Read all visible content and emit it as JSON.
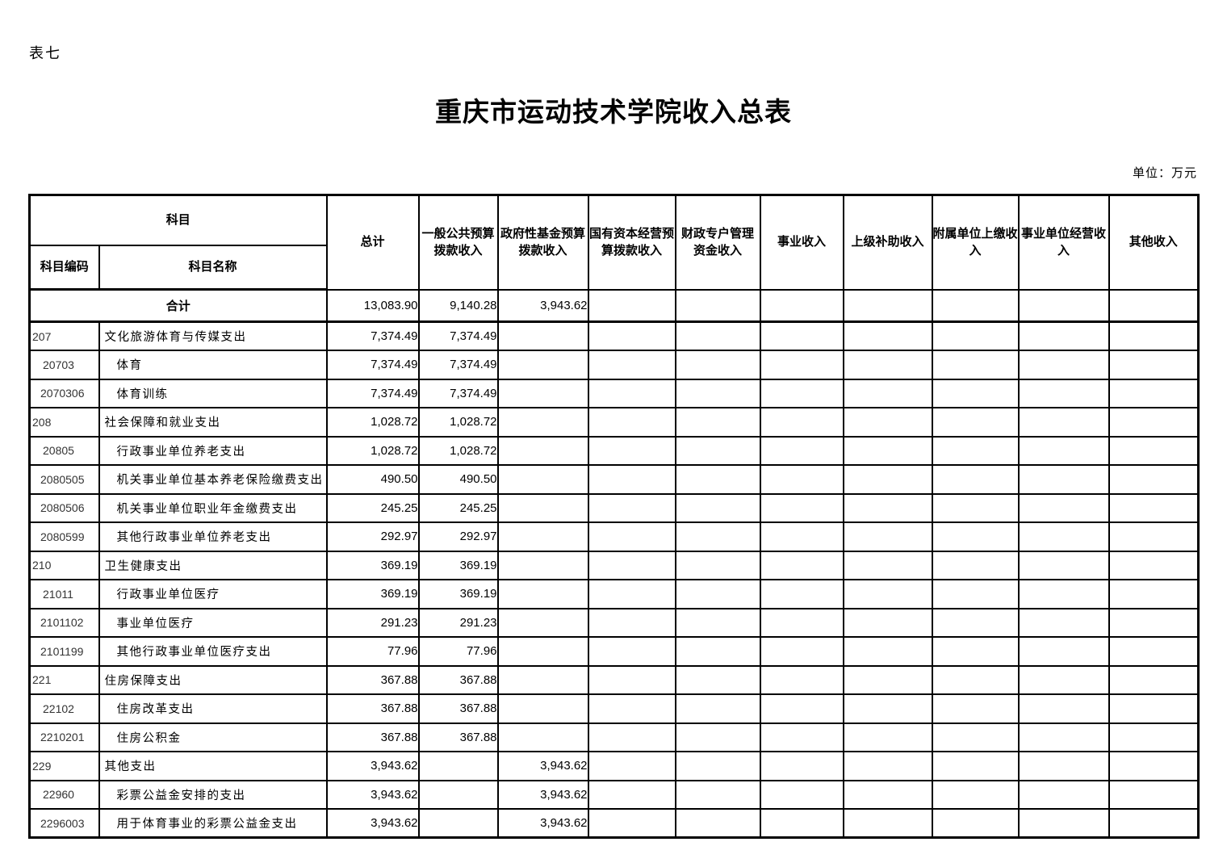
{
  "page": {
    "table_label": "表七",
    "title": "重庆市运动技术学院收入总表",
    "unit_label": "单位：万元"
  },
  "table": {
    "header": {
      "subject": "科目",
      "subject_code": "科目编码",
      "subject_name": "科目名称",
      "columns": [
        "总计",
        "一般公共预算拨款收入",
        "政府性基金预算拨款收入",
        "国有资本经营预算拨款收入",
        "财政专户管理资金收入",
        "事业收入",
        "上级补助收入",
        "附属单位上缴收入",
        "事业单位经营收入",
        "其他收入"
      ]
    },
    "total_row": {
      "label": "合计",
      "values": [
        "13,083.90",
        "9,140.28",
        "3,943.62",
        "",
        "",
        "",
        "",
        "",
        "",
        ""
      ]
    },
    "rows": [
      {
        "code": "207",
        "name": "文化旅游体育与传媒支出",
        "level": 1,
        "values": [
          "7,374.49",
          "7,374.49",
          "",
          "",
          "",
          "",
          "",
          "",
          "",
          ""
        ]
      },
      {
        "code": "20703",
        "name": "体育",
        "level": 2,
        "values": [
          "7,374.49",
          "7,374.49",
          "",
          "",
          "",
          "",
          "",
          "",
          "",
          ""
        ]
      },
      {
        "code": "2070306",
        "name": "体育训练",
        "level": 3,
        "values": [
          "7,374.49",
          "7,374.49",
          "",
          "",
          "",
          "",
          "",
          "",
          "",
          ""
        ]
      },
      {
        "code": "208",
        "name": "社会保障和就业支出",
        "level": 1,
        "values": [
          "1,028.72",
          "1,028.72",
          "",
          "",
          "",
          "",
          "",
          "",
          "",
          ""
        ]
      },
      {
        "code": "20805",
        "name": "行政事业单位养老支出",
        "level": 2,
        "values": [
          "1,028.72",
          "1,028.72",
          "",
          "",
          "",
          "",
          "",
          "",
          "",
          ""
        ]
      },
      {
        "code": "2080505",
        "name": "机关事业单位基本养老保险缴费支出",
        "level": 3,
        "values": [
          "490.50",
          "490.50",
          "",
          "",
          "",
          "",
          "",
          "",
          "",
          ""
        ]
      },
      {
        "code": "2080506",
        "name": "机关事业单位职业年金缴费支出",
        "level": 3,
        "values": [
          "245.25",
          "245.25",
          "",
          "",
          "",
          "",
          "",
          "",
          "",
          ""
        ]
      },
      {
        "code": "2080599",
        "name": "其他行政事业单位养老支出",
        "level": 3,
        "values": [
          "292.97",
          "292.97",
          "",
          "",
          "",
          "",
          "",
          "",
          "",
          ""
        ]
      },
      {
        "code": "210",
        "name": "卫生健康支出",
        "level": 1,
        "values": [
          "369.19",
          "369.19",
          "",
          "",
          "",
          "",
          "",
          "",
          "",
          ""
        ]
      },
      {
        "code": "21011",
        "name": "行政事业单位医疗",
        "level": 2,
        "values": [
          "369.19",
          "369.19",
          "",
          "",
          "",
          "",
          "",
          "",
          "",
          ""
        ]
      },
      {
        "code": "2101102",
        "name": "事业单位医疗",
        "level": 3,
        "values": [
          "291.23",
          "291.23",
          "",
          "",
          "",
          "",
          "",
          "",
          "",
          ""
        ]
      },
      {
        "code": "2101199",
        "name": "其他行政事业单位医疗支出",
        "level": 3,
        "values": [
          "77.96",
          "77.96",
          "",
          "",
          "",
          "",
          "",
          "",
          "",
          ""
        ]
      },
      {
        "code": "221",
        "name": "住房保障支出",
        "level": 1,
        "values": [
          "367.88",
          "367.88",
          "",
          "",
          "",
          "",
          "",
          "",
          "",
          ""
        ]
      },
      {
        "code": "22102",
        "name": "住房改革支出",
        "level": 2,
        "values": [
          "367.88",
          "367.88",
          "",
          "",
          "",
          "",
          "",
          "",
          "",
          ""
        ]
      },
      {
        "code": "2210201",
        "name": "住房公积金",
        "level": 3,
        "values": [
          "367.88",
          "367.88",
          "",
          "",
          "",
          "",
          "",
          "",
          "",
          ""
        ]
      },
      {
        "code": "229",
        "name": "其他支出",
        "level": 1,
        "values": [
          "3,943.62",
          "",
          "3,943.62",
          "",
          "",
          "",
          "",
          "",
          "",
          ""
        ]
      },
      {
        "code": "22960",
        "name": "彩票公益金安排的支出",
        "level": 2,
        "values": [
          "3,943.62",
          "",
          "3,943.62",
          "",
          "",
          "",
          "",
          "",
          "",
          ""
        ]
      },
      {
        "code": "2296003",
        "name": "用于体育事业的彩票公益金支出",
        "level": 3,
        "values": [
          "3,943.62",
          "",
          "3,943.62",
          "",
          "",
          "",
          "",
          "",
          "",
          ""
        ]
      }
    ]
  }
}
